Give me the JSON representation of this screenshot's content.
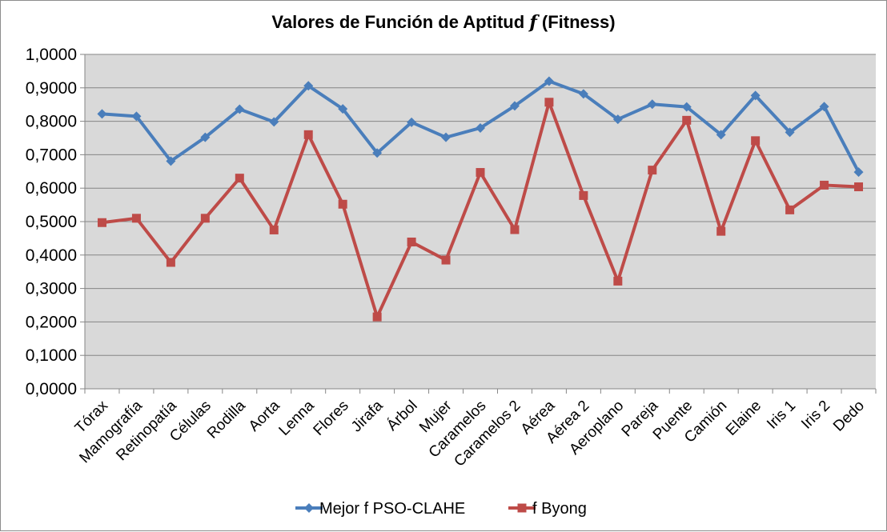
{
  "chart_data": {
    "type": "line",
    "title_main": "Valores de Función de Aptitud ",
    "title_italic": "f",
    "title_tail": " (Fitness)",
    "categories": [
      "Tórax",
      "Mamografía",
      "Retinopatía",
      "Células",
      "Rodilla",
      "Aorta",
      "Lenna",
      "Flores",
      "Jirafa",
      "Árbol",
      "Mujer",
      "Caramelos",
      "Caramelos 2",
      "Aérea",
      "Aérea 2",
      "Aeroplano",
      "Pareja",
      "Puente",
      "Camión",
      "Elaine",
      "Iris 1",
      "Iris 2",
      "Dedo"
    ],
    "y_ticks": [
      "0,0000",
      "0,1000",
      "0,2000",
      "0,3000",
      "0,4000",
      "0,5000",
      "0,6000",
      "0,7000",
      "0,8000",
      "0,9000",
      "1,0000"
    ],
    "ylim": [
      0,
      1
    ],
    "grid": true,
    "legend_position": "bottom",
    "series": [
      {
        "name": "Mejor f PSO-CLAHE",
        "color": "#4a7ebb",
        "marker": "diamond",
        "values": [
          0.822,
          0.815,
          0.681,
          0.752,
          0.836,
          0.798,
          0.906,
          0.837,
          0.705,
          0.797,
          0.752,
          0.78,
          0.846,
          0.92,
          0.882,
          0.806,
          0.851,
          0.843,
          0.76,
          0.877,
          0.767,
          0.844,
          0.648
        ]
      },
      {
        "name": "f Byong",
        "color": "#be4b48",
        "marker": "square",
        "values": [
          0.497,
          0.51,
          0.378,
          0.51,
          0.63,
          0.475,
          0.76,
          0.552,
          0.215,
          0.439,
          0.385,
          0.647,
          0.476,
          0.857,
          0.578,
          0.322,
          0.654,
          0.803,
          0.471,
          0.742,
          0.535,
          0.609,
          0.604
        ]
      }
    ]
  }
}
